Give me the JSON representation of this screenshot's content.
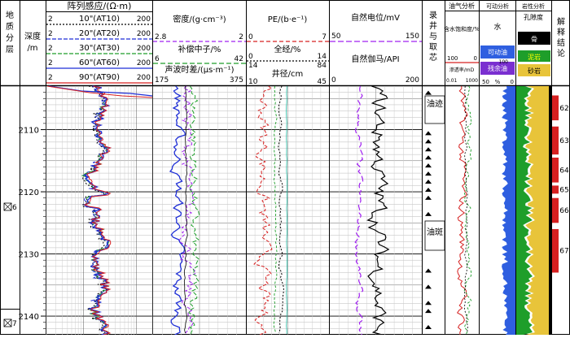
{
  "headers": {
    "zone": "地质分层",
    "depth_title": "深度",
    "depth_unit": "/m",
    "resistivity_title": "阵列感应/(Ω·m)",
    "density_label": "密度/(g·cm⁻³)",
    "neutron_label": "补偿中子/%",
    "acoustic_label": "声波时差/(μs·m⁻¹)",
    "pe_label": "PE/(b·e⁻¹)",
    "caliper_full_label": "全经/%",
    "caliper_well_label": "井径/cm",
    "sp_label": "自然电位/mV",
    "gr_label": "自然伽马/API",
    "core_label": "录井与取芯",
    "oilgas_title": "油气分析",
    "water_sat_label": "含水饱和度/%",
    "perm_label": "渗透率/mD",
    "movable_title": "可动分析",
    "water_label": "水",
    "movable_oil_label": "可动油",
    "residual_oil_label": "残余油",
    "litho_title": "岩性分析",
    "porosity_label": "孔隙度",
    "clay_label": "泥岩",
    "sand_label": "砂岩",
    "bone_label": "骨",
    "interp_label": "解释结论"
  },
  "resistivity_curves": [
    {
      "name": "10\"(AT10)",
      "min": "2",
      "max": "200",
      "color": "#000000",
      "dash": "2,2"
    },
    {
      "name": "20\"(AT20)",
      "min": "2",
      "max": "200",
      "color": "#1f2fd6",
      "dash": "5,2"
    },
    {
      "name": "30\"(AT30)",
      "min": "2",
      "max": "200",
      "color": "#1e9e2a",
      "dash": "5,2"
    },
    {
      "name": "60\"(AT60)",
      "min": "2",
      "max": "200",
      "color": "#1f2fd6",
      "dash": ""
    },
    {
      "name": "90\"(AT90)",
      "min": "2",
      "max": "200",
      "color": "#d62020",
      "dash": ""
    }
  ],
  "scales": {
    "density": [
      "2.8",
      "2"
    ],
    "neutron": [
      "6",
      "42"
    ],
    "acoustic": [
      "175",
      "375"
    ],
    "pe": [
      "0",
      "7"
    ],
    "caliper_full": [
      "0",
      "14"
    ],
    "caliper_extra": [
      "14",
      "84"
    ],
    "caliper_well": [
      "10",
      "45"
    ],
    "sp": [
      "50",
      "150"
    ],
    "gr": [
      "0",
      "200"
    ],
    "water_sat": [
      "100",
      "0"
    ],
    "perm": [
      "0.01",
      "1000"
    ],
    "movable_bottom": [
      "50",
      "%",
      "0"
    ],
    "movable_right": "100"
  },
  "core_shows": [
    "油迹",
    "油斑"
  ],
  "zones": [
    "6",
    "7"
  ],
  "interpretation_numbers": [
    "62",
    "63",
    "64",
    "65",
    "66",
    "67"
  ],
  "chart_data": {
    "type": "well_log",
    "depth_range": [
      2103,
      2143
    ],
    "depth_ticks": [
      2110,
      2120,
      2130,
      2140
    ],
    "zone_boundaries": [
      {
        "zone": "6",
        "from": 2103,
        "to": 2141.5
      },
      {
        "zone": "7",
        "from": 2141.5,
        "to": 2143
      }
    ],
    "interpretation_layers": [
      {
        "number": "62",
        "top": 2104.5,
        "bottom": 2108.5,
        "color": "#d62020"
      },
      {
        "number": "63",
        "top": 2109.5,
        "bottom": 2114,
        "color": "#d62020"
      },
      {
        "number": "64",
        "top": 2114.5,
        "bottom": 2118.5,
        "color": "#d62020"
      },
      {
        "number": "65",
        "top": 2119,
        "bottom": 2120.3,
        "color": "#d62020"
      },
      {
        "number": "66",
        "top": 2121,
        "bottom": 2125,
        "color": "#d62020"
      },
      {
        "number": "67",
        "top": 2126,
        "bottom": 2133,
        "color": "#d62020"
      }
    ]
  }
}
